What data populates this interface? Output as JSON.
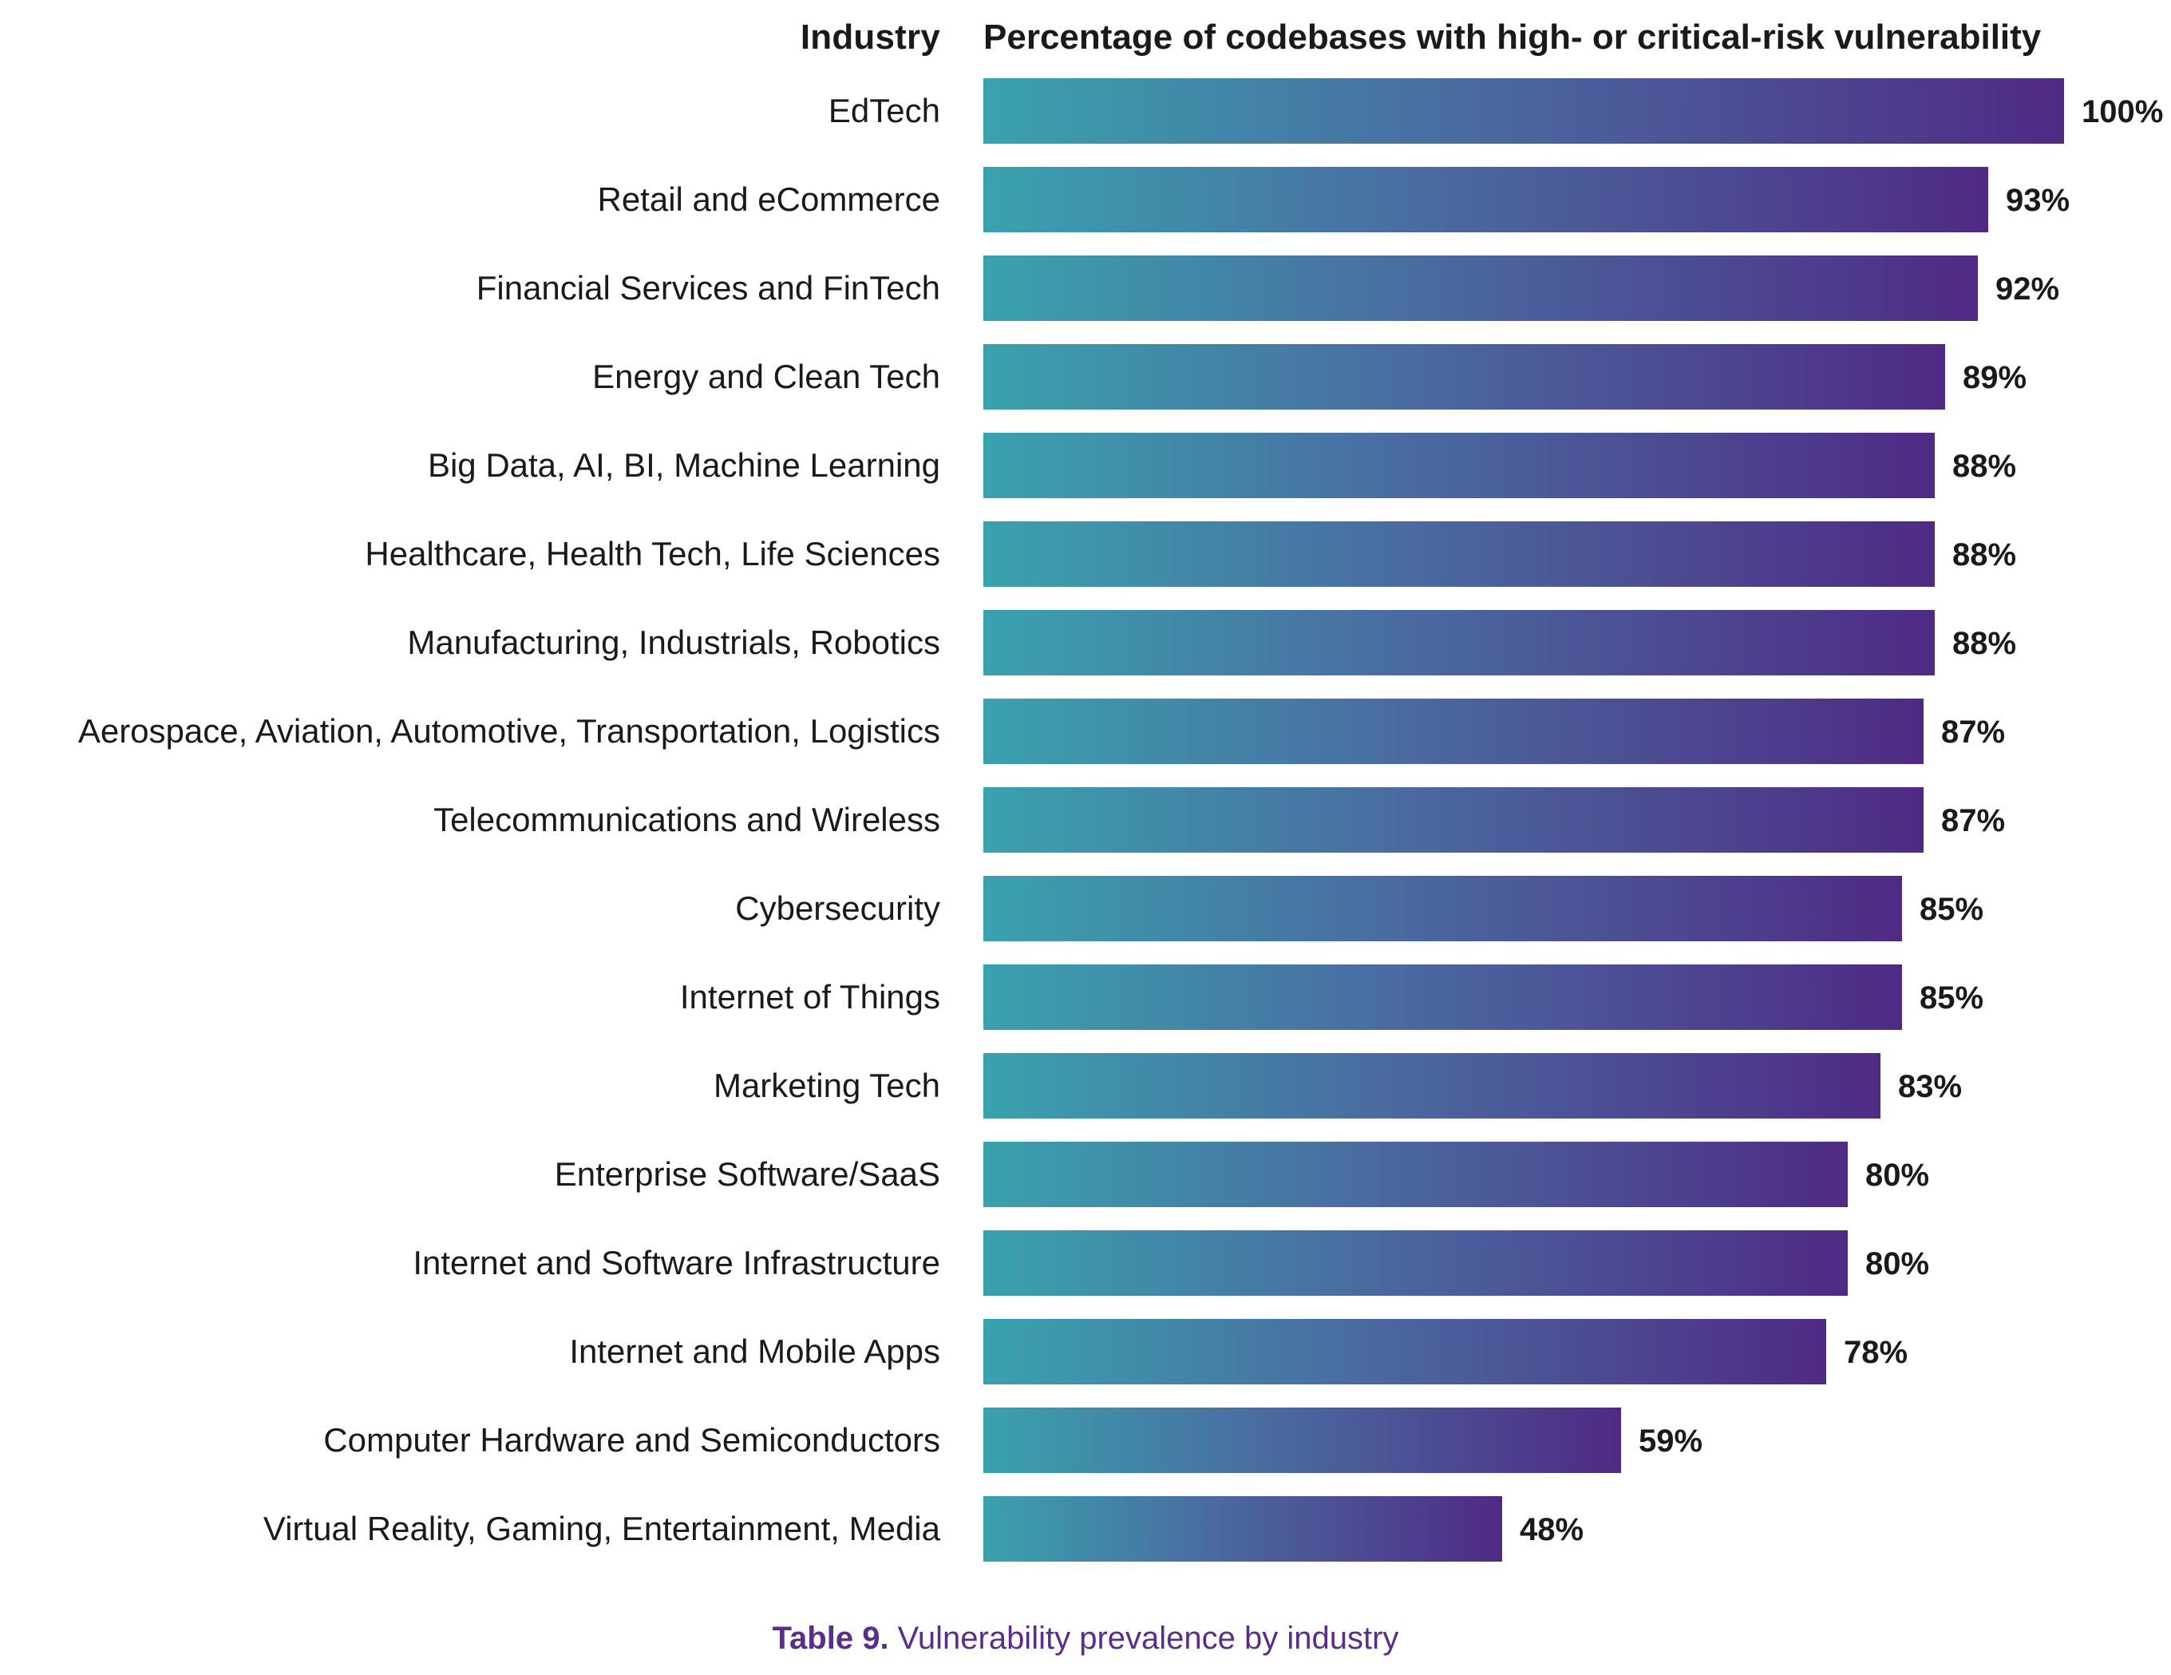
{
  "headers": {
    "category": "Industry",
    "value": "Percentage of codebases with high- or critical-risk vulnerability"
  },
  "caption": {
    "prefix": "Table 9.",
    "text": " Vulnerability prevalence by industry"
  },
  "colors": {
    "bar_start": "#3aa2ae",
    "bar_end": "#4f2a84",
    "caption": "#5a2d8a"
  },
  "chart_data": {
    "type": "bar",
    "orientation": "horizontal",
    "categories": [
      "EdTech",
      "Retail and eCommerce",
      "Financial Services and FinTech",
      "Energy and Clean Tech",
      "Big Data, AI, BI, Machine Learning",
      "Healthcare, Health Tech, Life Sciences",
      "Manufacturing, Industrials, Robotics",
      "Aerospace, Aviation, Automotive, Transportation, Logistics",
      "Telecommunications and Wireless",
      "Cybersecurity",
      "Internet of Things",
      "Marketing Tech",
      "Enterprise Software/SaaS",
      "Internet and Software Infrastructure",
      "Internet and Mobile Apps",
      "Computer Hardware and Semiconductors",
      "Virtual Reality, Gaming, Entertainment, Media"
    ],
    "values": [
      100,
      93,
      92,
      89,
      88,
      88,
      88,
      87,
      87,
      85,
      85,
      83,
      80,
      80,
      78,
      59,
      48
    ],
    "value_labels": [
      "100%",
      "93%",
      "92%",
      "89%",
      "88%",
      "88%",
      "88%",
      "87%",
      "87%",
      "85%",
      "85%",
      "83%",
      "80%",
      "80%",
      "78%",
      "59%",
      "48%"
    ],
    "xlim": [
      0,
      100
    ],
    "grid": false,
    "legend": "none"
  }
}
